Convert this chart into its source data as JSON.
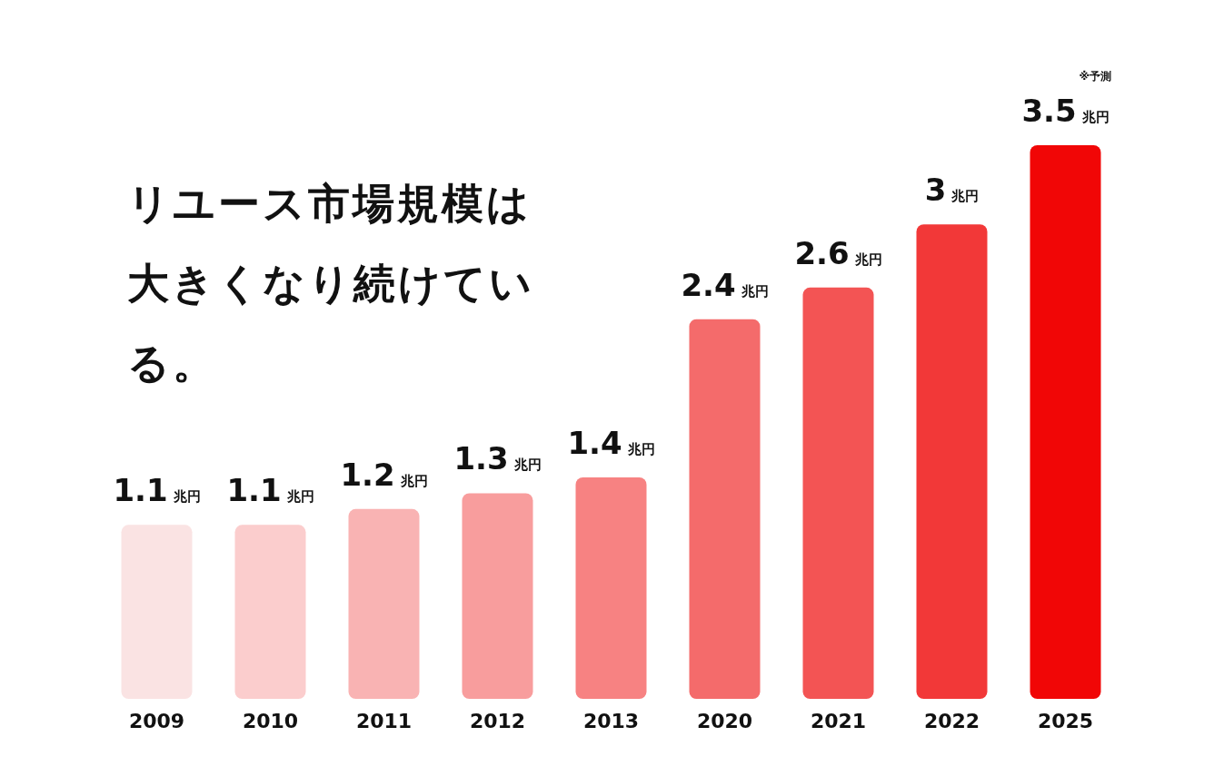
{
  "chart_data": {
    "type": "bar",
    "title": "リユース市場規模は大きくなり続けている。",
    "categories": [
      "2009",
      "2010",
      "2011",
      "2012",
      "2013",
      "2020",
      "2021",
      "2022",
      "2025"
    ],
    "values": [
      1.1,
      1.1,
      1.2,
      1.3,
      1.4,
      2.4,
      2.6,
      3,
      3.5
    ],
    "value_labels": [
      "1.1兆円",
      "1.1兆円",
      "1.2兆円",
      "1.3兆円",
      "1.4兆円",
      "2.4兆円",
      "2.6兆円",
      "3兆円",
      "3.5兆円"
    ],
    "colors": [
      "#fae3e3",
      "#fbcdcd",
      "#f9b3b3",
      "#f89d9d",
      "#f78282",
      "#f46b6b",
      "#f35454",
      "#f23838",
      "#f10606"
    ],
    "annotations": [
      "※予測"
    ]
  }
}
